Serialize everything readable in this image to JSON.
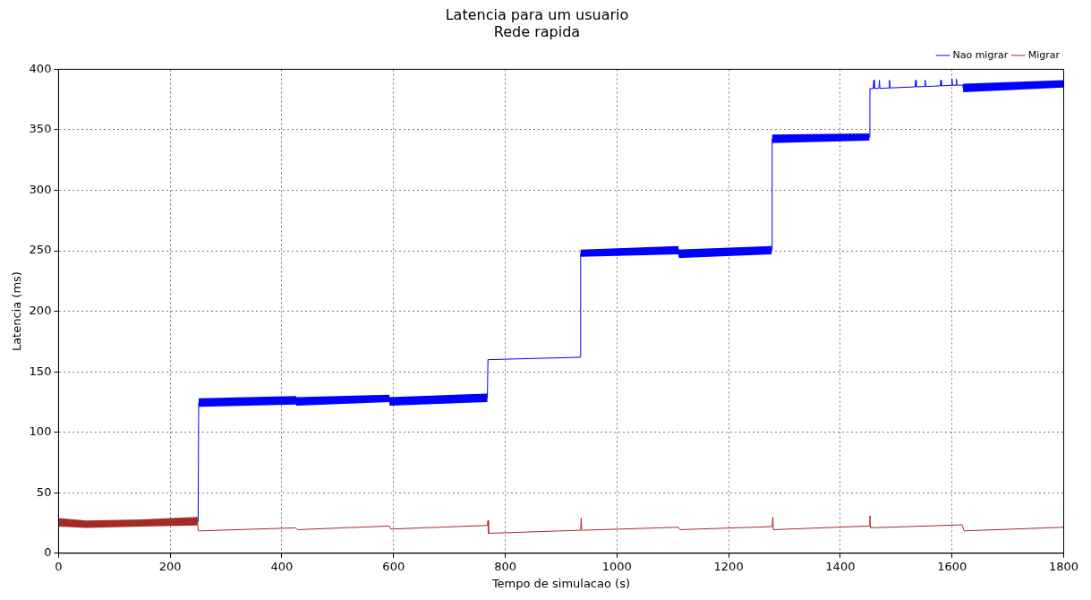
{
  "chart_data": {
    "type": "line",
    "title": "Latencia para um usuario",
    "subtitle": "Rede rapida",
    "xlabel": "Tempo de simulacao (s)",
    "ylabel": "Latencia (ms)",
    "xlim": [
      0,
      1800
    ],
    "xticks": [
      0,
      200,
      400,
      600,
      800,
      1000,
      1200,
      1400,
      1600,
      1800
    ],
    "ylim": [
      0,
      400
    ],
    "yticks": [
      0,
      50,
      100,
      150,
      200,
      250,
      300,
      350,
      400
    ],
    "grid": true,
    "legend": "top right",
    "marker": "none",
    "line_style": "solid",
    "series": [
      {
        "name": "Nao migrar",
        "color": "#0000ff",
        "x": [
          250,
          251,
          425,
          426,
          592,
          593,
          768,
          769,
          934,
          935,
          1110,
          1111,
          1277,
          1278,
          1452,
          1453,
          1459,
          1460,
          1461,
          1469,
          1470,
          1471,
          1487,
          1488,
          1489,
          1534,
          1535,
          1536,
          1551,
          1552,
          1553,
          1579,
          1580,
          1581,
          1599,
          1600,
          1601,
          1607,
          1608,
          1609,
          1619,
          1620,
          1800
        ],
        "values": [
          26,
          124.5,
          126.5,
          125.5,
          128,
          125.5,
          128.5,
          160,
          162,
          248,
          250.5,
          247.5,
          250.5,
          342.5,
          344,
          384,
          384.1,
          391,
          384.2,
          384.3,
          391,
          384.3,
          384.6,
          391,
          384.6,
          385.5,
          391,
          385.5,
          385.8,
          391,
          385.8,
          386.3,
          391,
          386.3,
          386.7,
          392,
          386.7,
          386.8,
          392,
          386.8,
          387,
          384.5,
          388
        ],
        "lower": [
          null,
          121,
          123,
          122,
          125,
          122,
          125,
          null,
          null,
          245,
          247,
          244,
          247,
          339,
          341,
          null,
          null,
          null,
          null,
          null,
          null,
          null,
          null,
          null,
          null,
          null,
          null,
          null,
          null,
          null,
          null,
          null,
          null,
          null,
          null,
          null,
          null,
          null,
          null,
          null,
          null,
          381,
          385
        ],
        "upper": [
          null,
          128,
          130,
          129,
          131,
          129,
          132,
          null,
          null,
          251,
          254,
          251,
          254,
          346,
          347,
          null,
          null,
          null,
          null,
          null,
          null,
          null,
          null,
          null,
          null,
          null,
          null,
          null,
          null,
          null,
          null,
          null,
          null,
          null,
          null,
          null,
          null,
          null,
          null,
          null,
          null,
          388,
          391
        ]
      },
      {
        "name": "Migrar",
        "color": "#a52a2a",
        "x": [
          0,
          50,
          150,
          249,
          250,
          252,
          425,
          428,
          592,
          595,
          768,
          769,
          770,
          935,
          936,
          937,
          1110,
          1113,
          1278,
          1279,
          1280,
          1452,
          1453,
          1454,
          1618,
          1622,
          1800
        ],
        "values": [
          25.5,
          24,
          25,
          26.5,
          18.5,
          18.5,
          21,
          19.5,
          22.5,
          20,
          23,
          27,
          16.5,
          19,
          29,
          19,
          21.5,
          19.5,
          22,
          30,
          19.5,
          22.5,
          31,
          21,
          23.5,
          18.5,
          21.5
        ],
        "lower": [
          22,
          21,
          22,
          23,
          null,
          null,
          null,
          null,
          null,
          null,
          null,
          null,
          null,
          null,
          null,
          null,
          null,
          null,
          null,
          null,
          null,
          null,
          null,
          null,
          null,
          null,
          null
        ],
        "upper": [
          29,
          27,
          28,
          30,
          null,
          null,
          null,
          null,
          null,
          null,
          null,
          null,
          null,
          null,
          null,
          null,
          null,
          null,
          null,
          null,
          null,
          null,
          null,
          null,
          null,
          null,
          null
        ]
      }
    ]
  }
}
